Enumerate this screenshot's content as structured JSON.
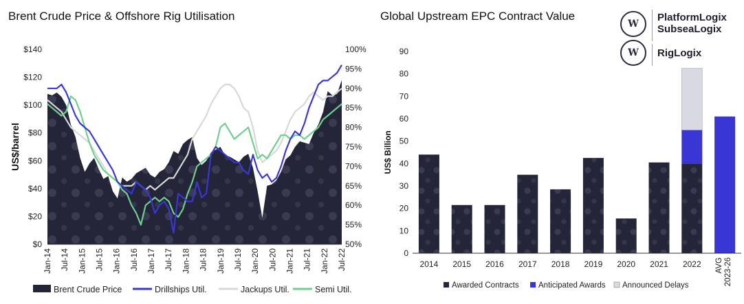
{
  "left_title": "Brent Crude Price & Offshore Rig Utilisation",
  "right_title": "Global Upstream EPC Contract Value",
  "logos": {
    "mark": "W",
    "brand1_line1": "PlatformLogix",
    "brand1_line2": "SubseaLogix",
    "brand2": "RigLogix"
  },
  "colors": {
    "dark": "#25253a",
    "blue": "#3a36d6",
    "gray": "#d8d8d8",
    "green": "#6fcf8c",
    "light_bar": "#d9d9e4"
  },
  "chart_data": [
    {
      "type": "area+line",
      "title": "Brent Crude Price & Offshore Rig Utilisation",
      "ylabel": "US$/barrel",
      "ylim": [
        0,
        140
      ],
      "yticks": [
        "$0",
        "$20",
        "$40",
        "$60",
        "$80",
        "$100",
        "$120",
        "$140"
      ],
      "y2lim": [
        50,
        100
      ],
      "y2ticks": [
        "50%",
        "55%",
        "60%",
        "65%",
        "70%",
        "75%",
        "80%",
        "85%",
        "90%",
        "95%",
        "100%"
      ],
      "x_labels": [
        "Jan-14",
        "Jul-14",
        "Jan-15",
        "Jul-15",
        "Jan-16",
        "Jul-16",
        "Jan-17",
        "Jul-17",
        "Jan-18",
        "Jul-18",
        "Jan-19",
        "Jul-19",
        "Jan-20",
        "Jul-20",
        "Jan-21",
        "Jul-21",
        "Jan-22",
        "Jul-22"
      ],
      "legend": [
        "Brent Crude Price",
        "Drillships Util.",
        "Jackups  Util.",
        "Semi Util."
      ],
      "series": [
        {
          "name": "Brent Crude Price",
          "axis": "left",
          "values": [
            108,
            107,
            109,
            106,
            100,
            86,
            77,
            62,
            52,
            58,
            62,
            54,
            47,
            49,
            38,
            33,
            48,
            45,
            47,
            51,
            53,
            55,
            50,
            48,
            52,
            54,
            59,
            67,
            65,
            72,
            75,
            77,
            62,
            57,
            60,
            66,
            68,
            70,
            64,
            63,
            61,
            59,
            63,
            65,
            55,
            38,
            19,
            42,
            43,
            46,
            52,
            61,
            64,
            70,
            74,
            73,
            72,
            80,
            86,
            95,
            110,
            107,
            108,
            118
          ]
        },
        {
          "name": "Drillships Util.",
          "axis": "right",
          "values": [
            90,
            90,
            90,
            91,
            89,
            86,
            83,
            81,
            80,
            79,
            77,
            75,
            73,
            71,
            69,
            66,
            65,
            64,
            63,
            66,
            65,
            64,
            62,
            58,
            60,
            61,
            59,
            53,
            63,
            62,
            61,
            61,
            66,
            62,
            63,
            73,
            75,
            74,
            73,
            72,
            71,
            71,
            69,
            68,
            73,
            69,
            67,
            68,
            66,
            67,
            70,
            74,
            77,
            79,
            78,
            81,
            85,
            88,
            91,
            92,
            92,
            93,
            94,
            96
          ]
        },
        {
          "name": "Jackups  Util.",
          "axis": "right",
          "values": [
            87,
            86,
            85,
            84,
            82,
            80,
            79,
            78,
            77,
            76,
            74,
            72,
            70,
            68,
            67,
            66,
            65,
            65,
            65,
            66,
            65,
            64,
            65,
            64,
            65,
            66,
            67,
            67,
            69,
            71,
            73,
            77,
            79,
            81,
            83,
            86,
            88,
            90,
            91,
            91,
            90,
            88,
            85,
            84,
            80,
            74,
            71,
            72,
            73,
            74,
            76,
            79,
            82,
            84,
            85,
            86,
            88,
            89,
            88,
            87,
            88,
            88,
            89,
            90
          ]
        },
        {
          "name": "Semi Util.",
          "axis": "right",
          "values": [
            86,
            85,
            84,
            83,
            84,
            88,
            87,
            84,
            80,
            76,
            73,
            71,
            69,
            68,
            67,
            66,
            64,
            63,
            60,
            58,
            55,
            60,
            61,
            62,
            61,
            62,
            61,
            58,
            57,
            59,
            63,
            66,
            70,
            71,
            72,
            73,
            75,
            80,
            81,
            79,
            77,
            78,
            79,
            80,
            76,
            72,
            73,
            72,
            74,
            76,
            78,
            78,
            77,
            78,
            78,
            77,
            78,
            79,
            80,
            82,
            83,
            84,
            85,
            86
          ]
        }
      ]
    },
    {
      "type": "bar",
      "stacked": true,
      "title": "Global Upstream EPC Contract Value",
      "ylabel": "US$ Billion",
      "ylim": [
        0,
        90
      ],
      "yticks": [
        "0",
        "10",
        "20",
        "30",
        "40",
        "50",
        "60",
        "70",
        "80",
        "90"
      ],
      "categories": [
        "2014",
        "2015",
        "2016",
        "2017",
        "2018",
        "2019",
        "2020",
        "2021",
        "2022",
        "AVG 2023-26"
      ],
      "category_lines": [
        [
          "2014"
        ],
        [
          "2015"
        ],
        [
          "2016"
        ],
        [
          "2017"
        ],
        [
          "2018"
        ],
        [
          "2019"
        ],
        [
          "2020"
        ],
        [
          "2021"
        ],
        [
          "2022"
        ],
        [
          "AVG",
          "2023-26"
        ]
      ],
      "series": [
        {
          "name": "Awarded Contracts",
          "values": [
            44,
            21.5,
            21.5,
            35,
            28.5,
            42.5,
            15.5,
            40.5,
            40,
            0
          ]
        },
        {
          "name": "Anticipated Awards",
          "values": [
            0,
            0,
            0,
            0,
            0,
            0,
            0,
            0,
            15,
            61
          ]
        },
        {
          "name": "Announced Delays",
          "values": [
            0,
            0,
            0,
            0,
            0,
            0,
            0,
            0,
            27.5,
            0
          ]
        }
      ]
    }
  ]
}
